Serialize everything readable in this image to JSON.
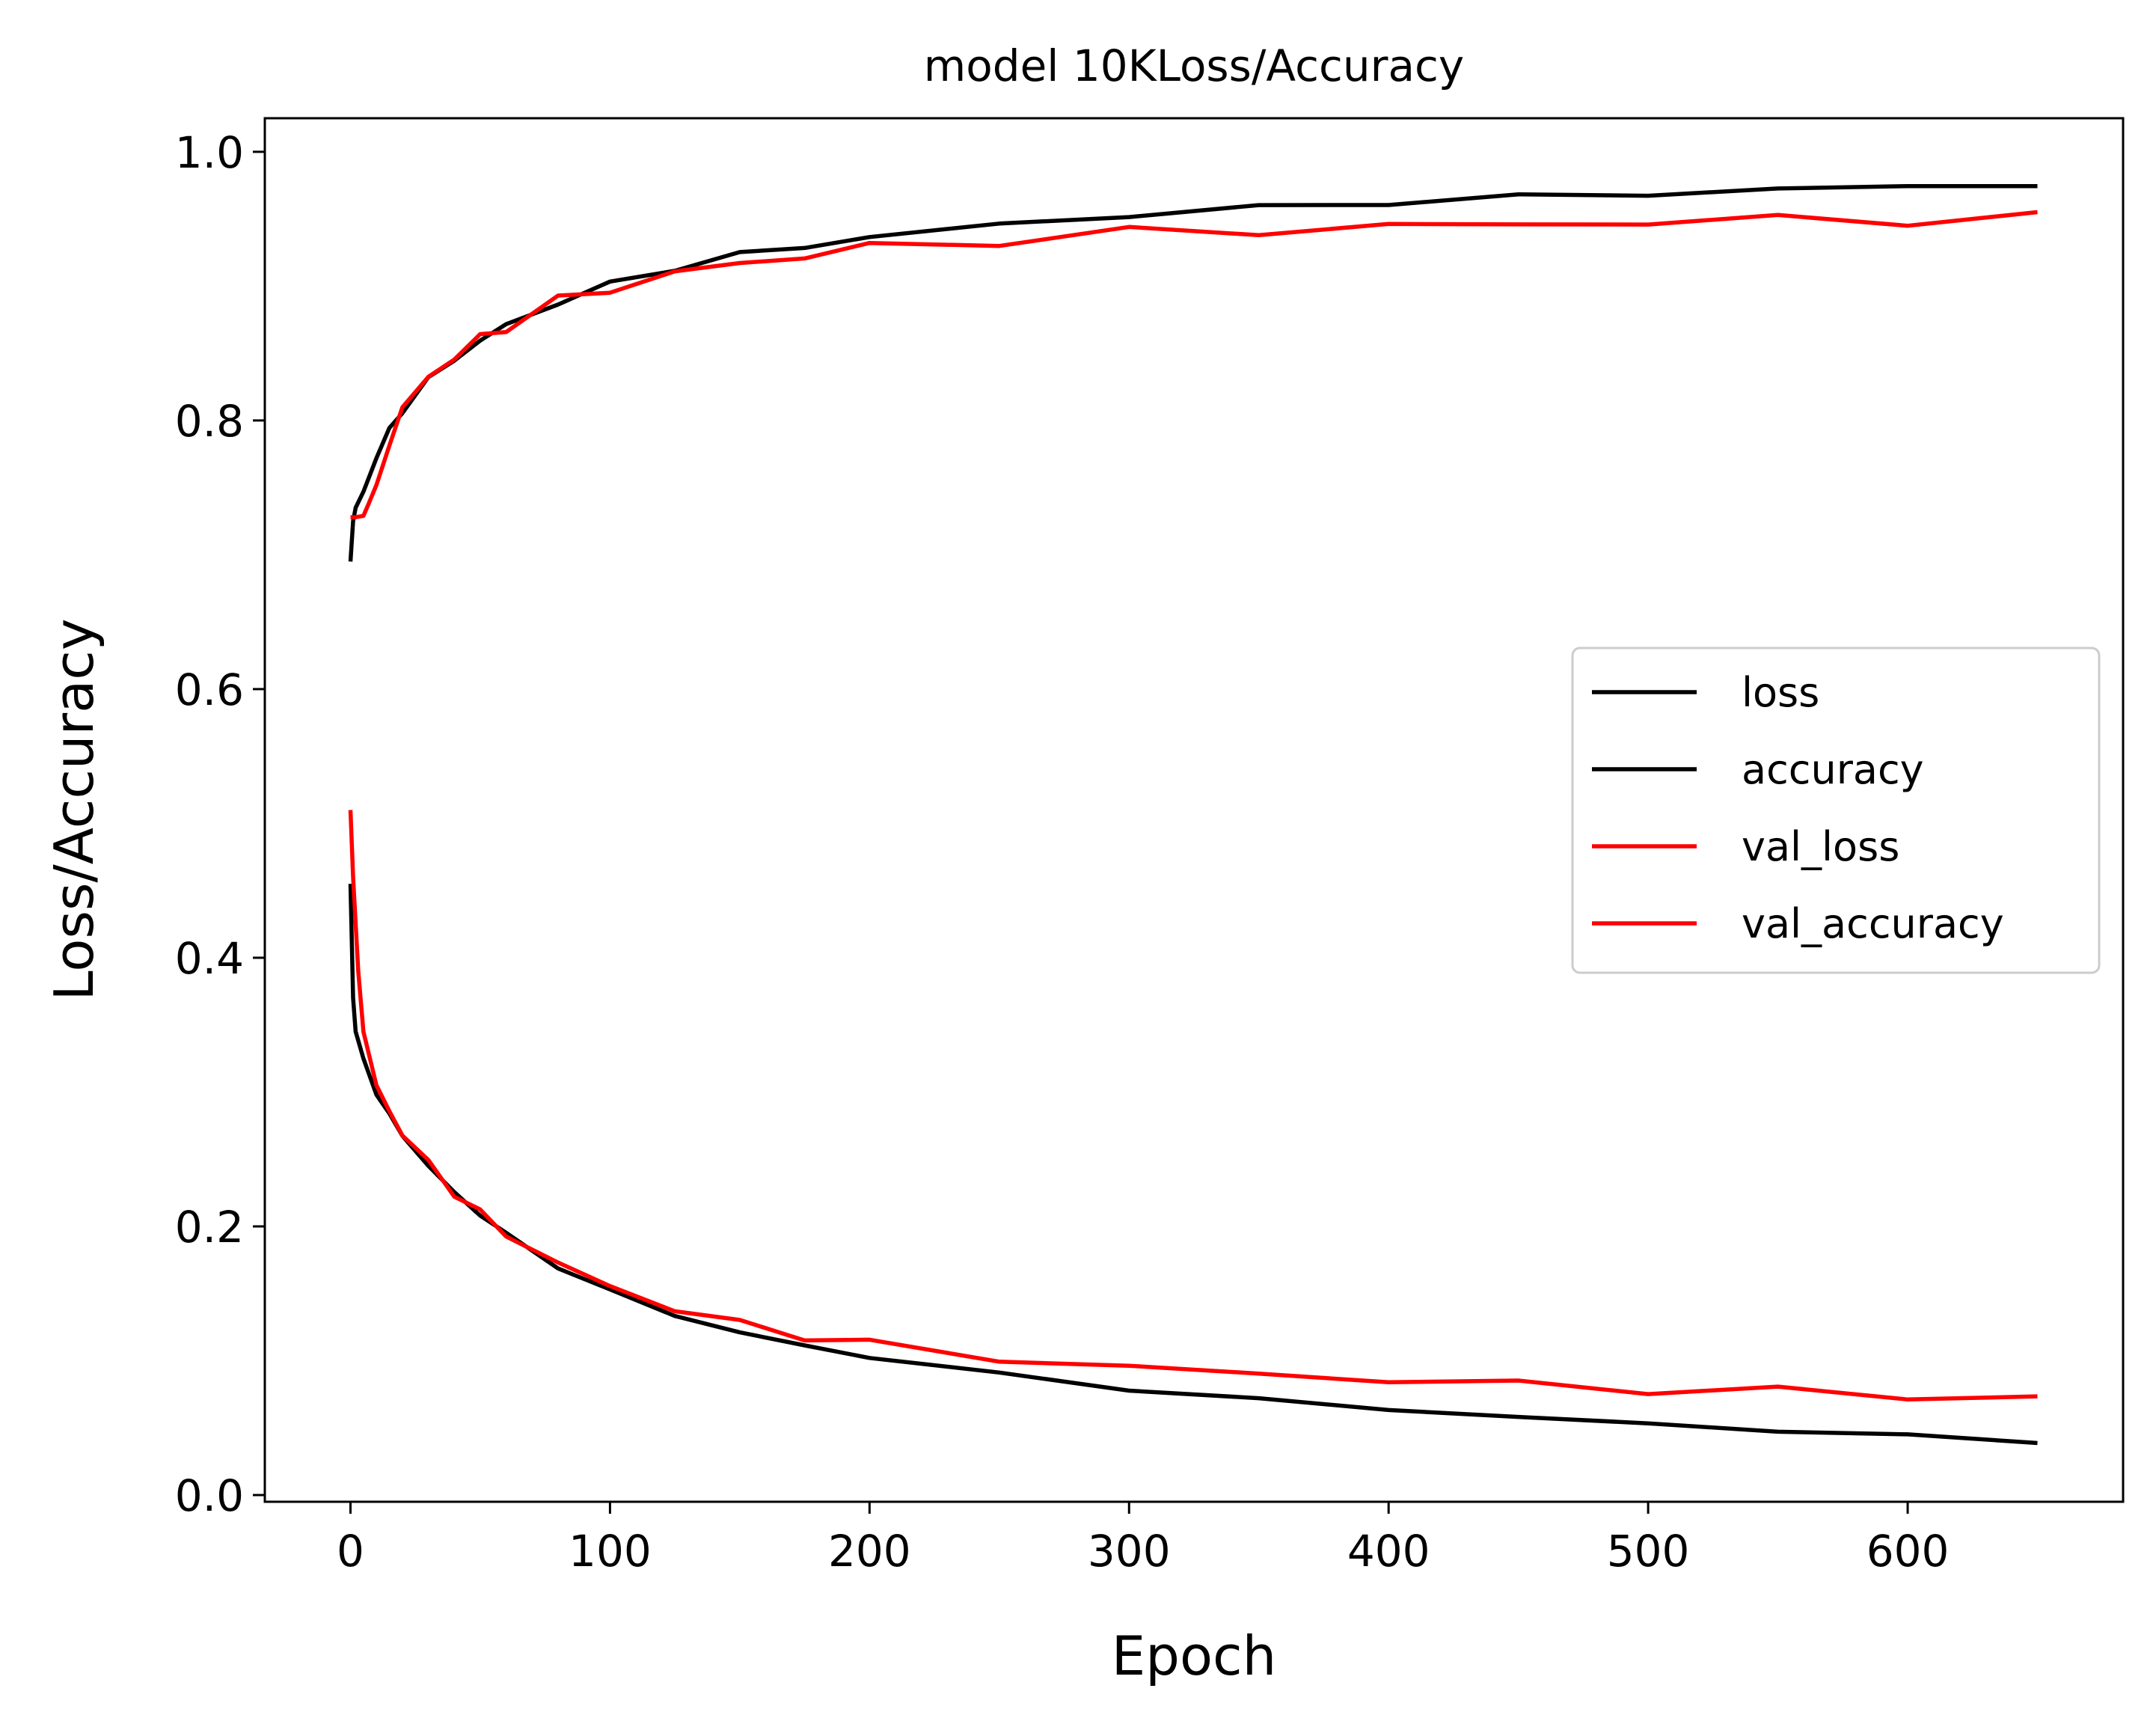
{
  "chart_data": {
    "type": "line",
    "title": "model 10KLoss/Accuracy",
    "xlabel": "Epoch",
    "ylabel": "Loss/Accuracy",
    "xlim": [
      -33,
      683
    ],
    "ylim": [
      -0.005,
      1.025
    ],
    "xticks": [
      0,
      100,
      200,
      300,
      400,
      500,
      600
    ],
    "yticks": [
      0.0,
      0.2,
      0.4,
      0.6,
      0.8,
      1.0
    ],
    "xtick_labels": [
      "0",
      "100",
      "200",
      "300",
      "400",
      "500",
      "600"
    ],
    "ytick_labels": [
      "0.0",
      "0.2",
      "0.4",
      "0.6",
      "0.8",
      "1.0"
    ],
    "grid": false,
    "legend_position": "center-right",
    "series": [
      {
        "name": "loss",
        "color": "#000000",
        "x": [
          0,
          1,
          2,
          5,
          10,
          15,
          20,
          30,
          40,
          50,
          60,
          80,
          100,
          125,
          150,
          175,
          200,
          250,
          300,
          350,
          400,
          450,
          500,
          550,
          600,
          650
        ],
        "values": [
          0.455,
          0.37,
          0.345,
          0.325,
          0.298,
          0.283,
          0.268,
          0.245,
          0.225,
          0.209,
          0.194,
          0.17,
          0.152,
          0.134,
          0.121,
          0.111,
          0.103,
          0.09,
          0.079,
          0.071,
          0.064,
          0.058,
          0.053,
          0.048,
          0.044,
          0.04
        ]
      },
      {
        "name": "accuracy",
        "color": "#000000",
        "x": [
          0,
          1,
          2,
          5,
          10,
          15,
          20,
          30,
          40,
          50,
          60,
          80,
          100,
          125,
          150,
          175,
          200,
          250,
          300,
          350,
          400,
          450,
          500,
          550,
          600,
          650
        ],
        "values": [
          0.695,
          0.725,
          0.735,
          0.747,
          0.772,
          0.792,
          0.808,
          0.83,
          0.846,
          0.859,
          0.871,
          0.888,
          0.901,
          0.914,
          0.923,
          0.93,
          0.936,
          0.946,
          0.953,
          0.958,
          0.963,
          0.966,
          0.969,
          0.972,
          0.974,
          0.976
        ]
      },
      {
        "name": "val_loss",
        "color": "#ff0000",
        "x": [
          0,
          1,
          3,
          5,
          10,
          15,
          20,
          30,
          40,
          50,
          60,
          80,
          100,
          125,
          150,
          175,
          200,
          250,
          300,
          350,
          400,
          450,
          500,
          550,
          600,
          650
        ],
        "values": [
          0.51,
          0.46,
          0.39,
          0.345,
          0.305,
          0.285,
          0.27,
          0.246,
          0.226,
          0.209,
          0.195,
          0.172,
          0.155,
          0.139,
          0.127,
          0.119,
          0.112,
          0.102,
          0.095,
          0.09,
          0.086,
          0.082,
          0.079,
          0.077,
          0.074,
          0.072
        ]
      },
      {
        "name": "val_accuracy",
        "color": "#ff0000",
        "x": [
          0,
          2,
          5,
          7,
          10,
          15,
          20,
          30,
          40,
          50,
          60,
          80,
          100,
          125,
          150,
          175,
          200,
          250,
          300,
          350,
          400,
          450,
          500,
          550,
          600,
          650
        ],
        "values": [
          0.728,
          0.728,
          0.729,
          0.738,
          0.752,
          0.785,
          0.808,
          0.832,
          0.848,
          0.86,
          0.871,
          0.888,
          0.899,
          0.909,
          0.917,
          0.923,
          0.928,
          0.935,
          0.939,
          0.942,
          0.944,
          0.946,
          0.948,
          0.949,
          0.95,
          0.95
        ]
      }
    ]
  }
}
